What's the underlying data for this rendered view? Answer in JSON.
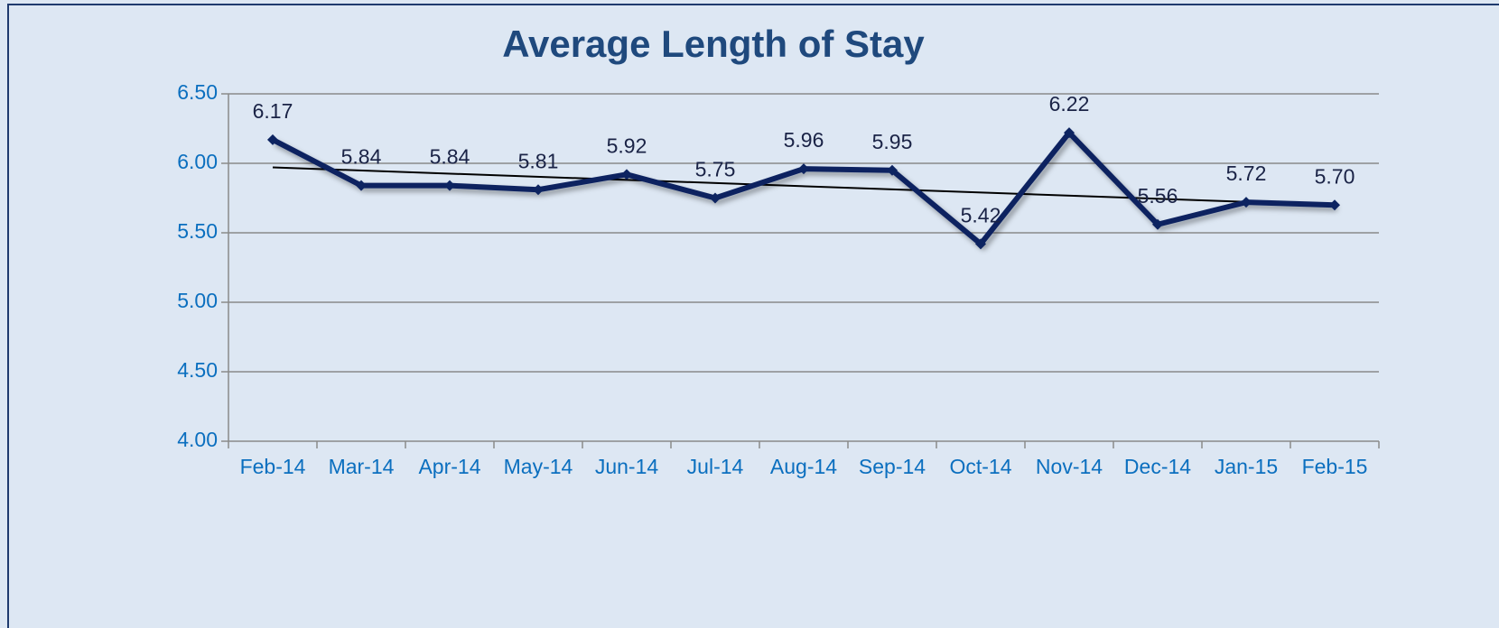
{
  "chart_data": {
    "type": "line",
    "title": "Average Length of Stay",
    "categories": [
      "Feb-14",
      "Mar-14",
      "Apr-14",
      "May-14",
      "Jun-14",
      "Jul-14",
      "Aug-14",
      "Sep-14",
      "Oct-14",
      "Nov-14",
      "Dec-14",
      "Jan-15",
      "Feb-15"
    ],
    "values": [
      6.17,
      5.84,
      5.84,
      5.81,
      5.92,
      5.75,
      5.96,
      5.95,
      5.42,
      6.22,
      5.56,
      5.72,
      5.7
    ],
    "value_labels": [
      "6.17",
      "5.84",
      "5.84",
      "5.81",
      "5.92",
      "5.75",
      "5.96",
      "5.95",
      "5.42",
      "6.22",
      "5.56",
      "5.72",
      "5.70"
    ],
    "color": "#0d2461",
    "ylim": [
      4,
      6.5
    ],
    "yticks": [
      {
        "value": 4,
        "label": "4.00"
      },
      {
        "value": 4.5,
        "label": "4.50"
      },
      {
        "value": 5,
        "label": "5.00"
      },
      {
        "value": 5.5,
        "label": "5.50"
      },
      {
        "value": 6,
        "label": "6.00"
      },
      {
        "value": 6.5,
        "label": "6.50"
      }
    ],
    "grid": true,
    "trendline": true
  }
}
